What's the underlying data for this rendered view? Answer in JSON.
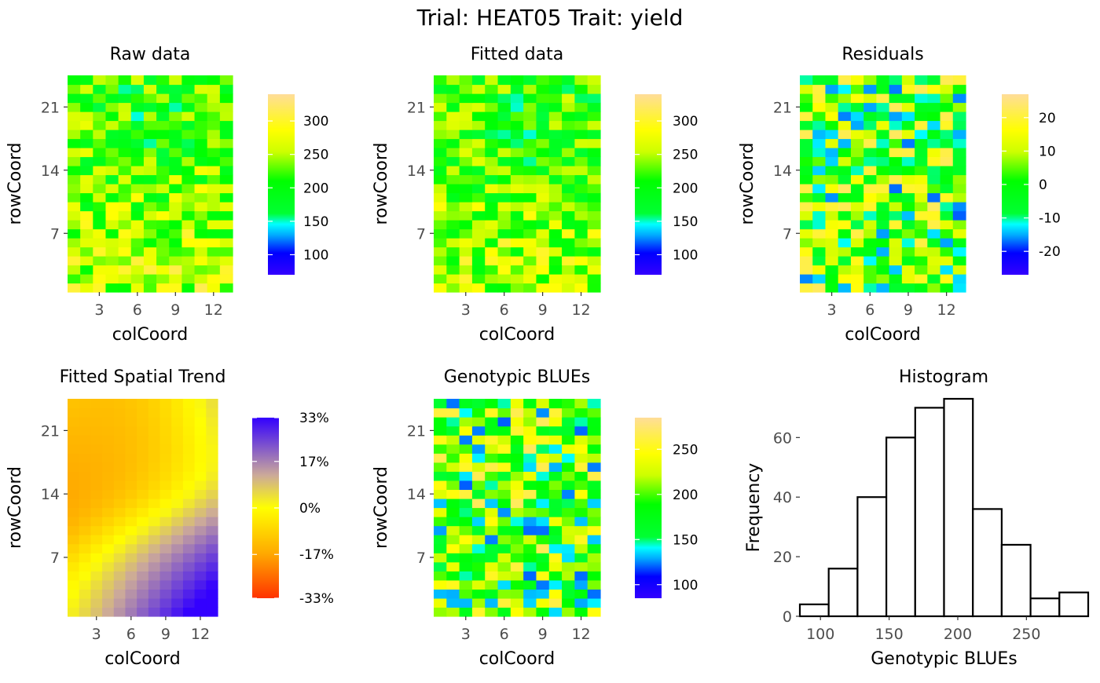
{
  "figure": {
    "title": "Trial: HEAT05 Trait: yield"
  },
  "chart_data": [
    {
      "id": "raw",
      "type": "heatmap",
      "title": "Raw data",
      "xlabel": "colCoord",
      "ylabel": "rowCoord",
      "cols": 13,
      "rows": 24,
      "xticks": [
        "3",
        "6",
        "9",
        "12"
      ],
      "yticks": [
        "21",
        "14",
        "7"
      ],
      "legend_ticks": [
        "300",
        "250",
        "200",
        "150",
        "100"
      ],
      "scale": "yield",
      "range": [
        70,
        340
      ],
      "trend": "raw",
      "seed": 11
    },
    {
      "id": "fitted",
      "type": "heatmap",
      "title": "Fitted data",
      "xlabel": "colCoord",
      "ylabel": "rowCoord",
      "cols": 13,
      "rows": 24,
      "xticks": [
        "3",
        "6",
        "9",
        "12"
      ],
      "yticks": [
        "21",
        "14",
        "7"
      ],
      "legend_ticks": [
        "300",
        "250",
        "200",
        "150",
        "100"
      ],
      "scale": "yield",
      "range": [
        70,
        340
      ],
      "trend": "raw",
      "seed": 23
    },
    {
      "id": "residuals",
      "type": "heatmap",
      "title": "Residuals",
      "xlabel": "colCoord",
      "ylabel": "rowCoord",
      "cols": 13,
      "rows": 24,
      "xticks": [
        "3",
        "6",
        "9",
        "12"
      ],
      "yticks": [
        "21",
        "14",
        "7"
      ],
      "legend_ticks": [
        "20",
        "10",
        "0",
        "-10",
        "-20"
      ],
      "scale": "yield",
      "range": [
        -27,
        27
      ],
      "trend": "none",
      "seed": 37
    },
    {
      "id": "trend",
      "type": "heatmap",
      "title": "Fitted Spatial Trend",
      "xlabel": "colCoord",
      "ylabel": "rowCoord",
      "cols": 13,
      "rows": 24,
      "xticks": [
        "3",
        "6",
        "9",
        "12"
      ],
      "yticks": [
        "21",
        "14",
        "7"
      ],
      "legend_ticks": [
        "33%",
        "17%",
        "0%",
        "-17%",
        "-33%"
      ],
      "scale": "trend",
      "range": [
        -33,
        33
      ],
      "trend": "smooth",
      "seed": 0
    },
    {
      "id": "blues",
      "type": "heatmap",
      "title": "Genotypic BLUEs",
      "xlabel": "colCoord",
      "ylabel": "rowCoord",
      "cols": 13,
      "rows": 24,
      "xticks": [
        "3",
        "6",
        "9",
        "12"
      ],
      "yticks": [
        "21",
        "14",
        "7"
      ],
      "legend_ticks": [
        "250",
        "200",
        "150",
        "100"
      ],
      "scale": "yield",
      "range": [
        85,
        285
      ],
      "trend": "none",
      "seed": 53
    },
    {
      "id": "histogram",
      "type": "bar",
      "title": "Histogram",
      "xlabel": "Genotypic BLUEs",
      "ylabel": "Frequency",
      "bin_edges": [
        85,
        106,
        127,
        148,
        169,
        190,
        211,
        232,
        253,
        274,
        295
      ],
      "counts": [
        4,
        16,
        40,
        60,
        70,
        73,
        36,
        24,
        6,
        8
      ],
      "xticks": [
        100,
        150,
        200,
        250
      ],
      "yticks": [
        0,
        20,
        40,
        60
      ],
      "xlim": [
        85,
        295
      ],
      "ylim": [
        0,
        73
      ]
    }
  ]
}
